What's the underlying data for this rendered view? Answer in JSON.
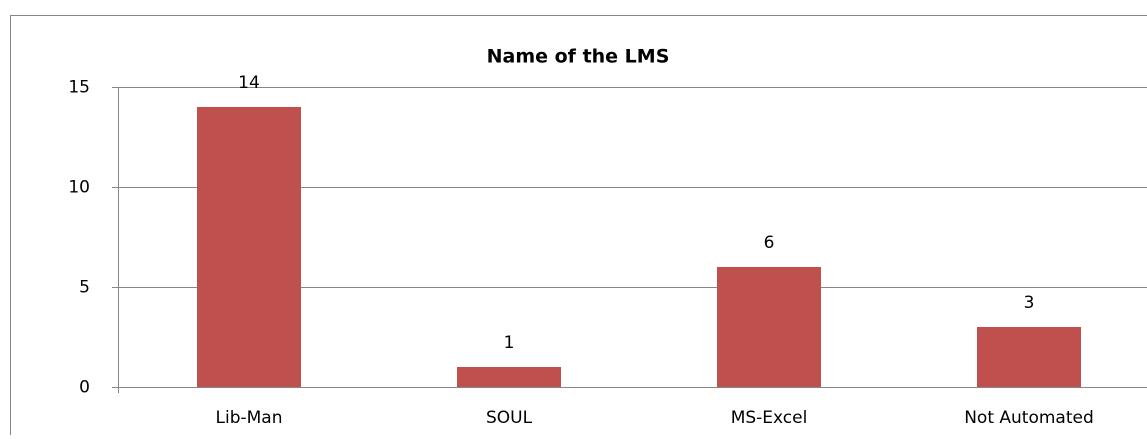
{
  "chart_data": {
    "type": "bar",
    "title": "Name of the LMS",
    "categories": [
      "Lib-Man",
      "SOUL",
      "MS-Excel",
      "Not Automated"
    ],
    "values": [
      14,
      1,
      6,
      3
    ],
    "color": "#c0504d",
    "ylim": [
      0,
      15
    ],
    "yticks": [
      0,
      5,
      10,
      15
    ],
    "grid": true
  }
}
